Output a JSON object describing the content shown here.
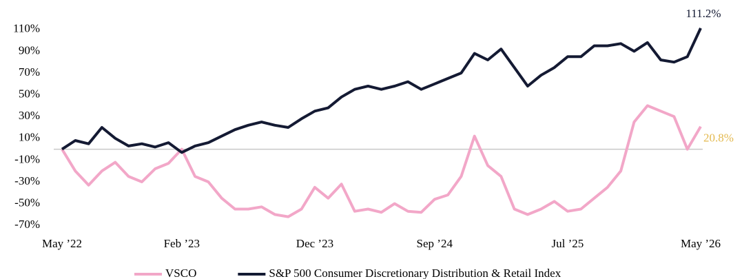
{
  "chart_data": {
    "type": "line",
    "x": [
      0,
      1,
      2,
      3,
      4,
      5,
      6,
      7,
      8,
      9,
      10,
      11,
      12,
      13,
      14,
      15,
      16,
      17,
      18,
      19,
      20,
      21,
      22,
      23,
      24,
      25,
      26,
      27,
      28,
      29,
      30,
      31,
      32,
      33,
      34,
      35,
      36,
      37,
      38,
      39,
      40,
      41,
      42,
      43,
      44,
      45,
      46,
      47,
      48
    ],
    "xlim": [
      0,
      48
    ],
    "xticks": [
      {
        "value": 0,
        "label": "May ’22"
      },
      {
        "value": 9,
        "label": "Feb ’23"
      },
      {
        "value": 19,
        "label": "Dec ’23"
      },
      {
        "value": 28,
        "label": "Sep ’24"
      },
      {
        "value": 38,
        "label": "Jul ’25"
      },
      {
        "value": 48,
        "label": "May ’26"
      }
    ],
    "ylim": [
      -80,
      120
    ],
    "yticks": [
      {
        "value": -70,
        "label": "-70%"
      },
      {
        "value": -50,
        "label": "-50%"
      },
      {
        "value": -30,
        "label": "-30%"
      },
      {
        "value": -10,
        "label": "-10%"
      },
      {
        "value": 10,
        "label": "10%"
      },
      {
        "value": 30,
        "label": "30%"
      },
      {
        "value": 50,
        "label": "50%"
      },
      {
        "value": 70,
        "label": "70%"
      },
      {
        "value": 90,
        "label": "90%"
      },
      {
        "value": 110,
        "label": "110%"
      }
    ],
    "series": [
      {
        "name": "VSCO",
        "color": "#f2a7c8",
        "label_color": "#e3b94f",
        "last_label": "20.8%",
        "values": [
          0,
          -20,
          -33,
          -20,
          -12,
          -25,
          -30,
          -18,
          -13,
          0,
          -25,
          -30,
          -45,
          -55,
          -55,
          -53,
          -60,
          -62,
          -55,
          -35,
          -45,
          -32,
          -57,
          -55,
          -58,
          -50,
          -57,
          -58,
          -46,
          -42,
          -25,
          12,
          -15,
          -25,
          -55,
          -60,
          -55,
          -48,
          -57,
          -55,
          -45,
          -35,
          -20,
          25,
          40,
          35,
          30,
          0,
          20.8
        ]
      },
      {
        "name": "S&P 500 Consumer Discretionary Distribution & Retail Index",
        "color": "#141a33",
        "label_color": "#141a33",
        "last_label": "111.2%",
        "values": [
          0,
          8,
          5,
          20,
          10,
          3,
          5,
          2,
          6,
          -3,
          3,
          6,
          12,
          18,
          22,
          25,
          22,
          20,
          28,
          35,
          38,
          48,
          55,
          58,
          55,
          58,
          62,
          55,
          60,
          65,
          70,
          88,
          82,
          92,
          75,
          58,
          68,
          75,
          85,
          85,
          95,
          95,
          97,
          90,
          98,
          82,
          80,
          85,
          111.2
        ]
      }
    ]
  }
}
